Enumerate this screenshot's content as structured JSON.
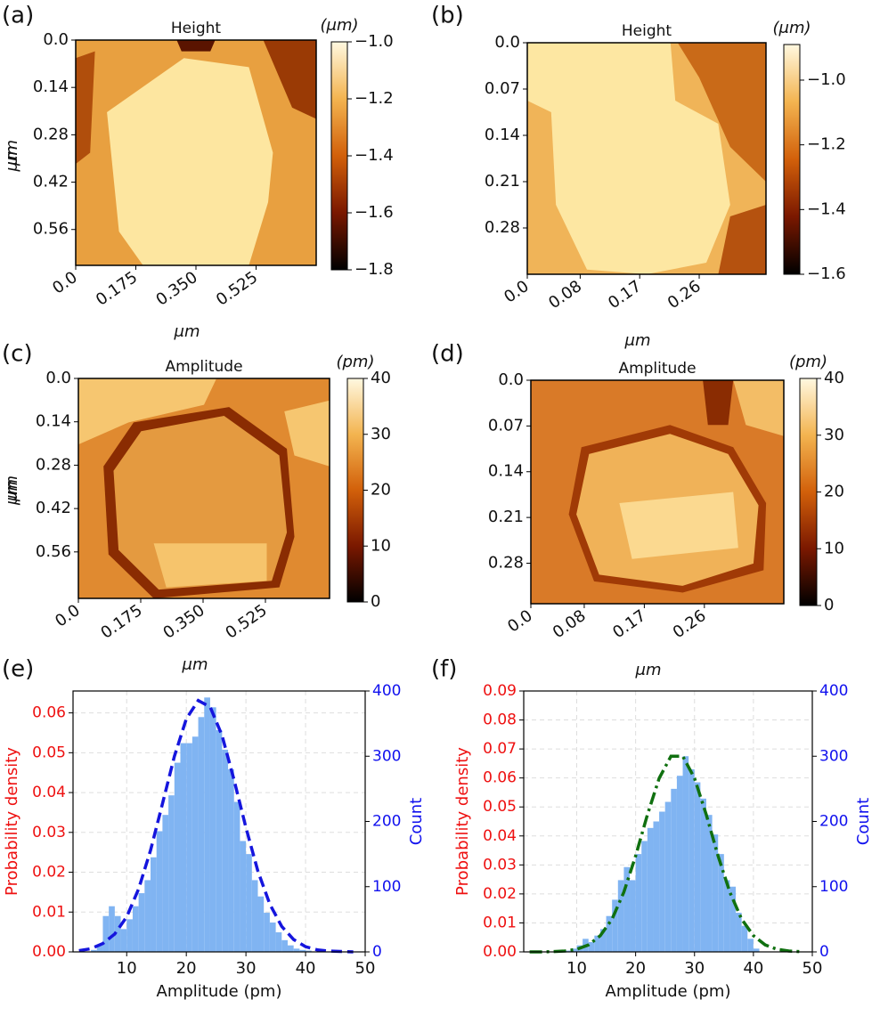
{
  "chart_data": [
    {
      "type": "heatmap",
      "panel_label": "(a)",
      "title": "Height",
      "xlabel": "μm",
      "ylabel": "μm",
      "yinvert": true,
      "xlim": [
        0,
        0.7
      ],
      "ylim": [
        0,
        0.666
      ],
      "xticks": [
        {
          "value": 0,
          "label": "0.0"
        },
        0.175,
        {
          "value": 0.35,
          "label": "0.350"
        },
        0.525
      ],
      "yticks": [
        {
          "value": 0,
          "label": "0.0"
        },
        0.14,
        0.28,
        0.42,
        0.56
      ],
      "colorbar": {
        "label": "(μm)",
        "clim": [
          -1.8,
          -1.0
        ],
        "colormap": [
          "#000000",
          "#7a1800",
          "#d2600a",
          "#f3b450",
          "#fff8e0"
        ],
        "ticks": [
          {
            "value": -1.0,
            "label": "−1.0"
          },
          {
            "value": -1.2,
            "label": "−1.2"
          },
          {
            "value": -1.4,
            "label": "−1.4"
          },
          {
            "value": -1.6,
            "label": "−1.6"
          },
          {
            "value": -1.8,
            "label": "−1.8"
          }
        ]
      }
    },
    {
      "type": "heatmap",
      "panel_label": "(b)",
      "title": "Height",
      "xlabel": "μm",
      "ylabel": "μm",
      "yinvert": true,
      "xlim": [
        0,
        0.361
      ],
      "ylim": [
        0,
        0.35
      ],
      "xticks": [
        {
          "value": 0,
          "label": "0.0"
        },
        0.08,
        0.17,
        0.26
      ],
      "yticks": [
        {
          "value": 0,
          "label": "0.0"
        },
        0.07,
        0.14,
        0.21,
        0.28
      ],
      "colorbar": {
        "label": "(μm)",
        "clim": [
          -1.6,
          -0.89
        ],
        "colormap": [
          "#000000",
          "#7a1800",
          "#d2600a",
          "#f3b450",
          "#fff8e0"
        ],
        "ticks": [
          {
            "value": -1.0,
            "label": "−1.0"
          },
          {
            "value": -1.2,
            "label": "−1.2"
          },
          {
            "value": -1.4,
            "label": "−1.4"
          },
          {
            "value": -1.6,
            "label": "−1.6"
          }
        ]
      }
    },
    {
      "type": "heatmap",
      "panel_label": "(c)",
      "title": "Amplitude",
      "xlabel": "μm",
      "ylabel": "μm",
      "yinvert": true,
      "xlim": [
        0,
        0.705
      ],
      "ylim": [
        0,
        0.71
      ],
      "xticks": [
        {
          "value": 0,
          "label": "0.0"
        },
        0.175,
        {
          "value": 0.35,
          "label": "0.350"
        },
        0.525
      ],
      "yticks": [
        {
          "value": 0,
          "label": "0.0"
        },
        0.14,
        0.28,
        0.42,
        0.56
      ],
      "colorbar": {
        "label": "(pm)",
        "clim": [
          0,
          40
        ],
        "colormap": [
          "#000000",
          "#7a1800",
          "#d2600a",
          "#f3b450",
          "#fff8e0"
        ],
        "ticks": [
          0,
          10,
          20,
          30,
          40
        ]
      }
    },
    {
      "type": "heatmap",
      "panel_label": "(d)",
      "title": "Amplitude",
      "xlabel": "μm",
      "ylabel": "μm",
      "yinvert": true,
      "xlim": [
        0,
        0.379
      ],
      "ylim": [
        0,
        0.342
      ],
      "xticks": [
        {
          "value": 0,
          "label": "0.0"
        },
        0.08,
        0.17,
        0.26
      ],
      "yticks": [
        {
          "value": 0,
          "label": "0.0"
        },
        0.07,
        0.14,
        0.21,
        0.28
      ],
      "colorbar": {
        "label": "(pm)",
        "clim": [
          0,
          40
        ],
        "colormap": [
          "#000000",
          "#7a1800",
          "#d2600a",
          "#f3b450",
          "#fff8e0"
        ],
        "ticks": [
          0,
          10,
          20,
          30,
          40
        ]
      }
    },
    {
      "type": "histogram",
      "panel_label": "(e)",
      "xlabel": "Amplitude (pm)",
      "ylabel": "Probability density",
      "y2label": "Count",
      "ylabel_color": "#ee1111",
      "y2label_color": "#1111ee",
      "grid": true,
      "xlim": [
        1,
        50
      ],
      "xticks": [
        10,
        20,
        30,
        40,
        50
      ],
      "ylim": [
        0,
        0.0655
      ],
      "yticks": [
        {
          "value": 0,
          "label": "0.00"
        },
        0.01,
        0.02,
        0.03,
        0.04,
        0.05,
        0.06
      ],
      "y2lim": [
        0,
        400
      ],
      "y2ticks": [
        0,
        100,
        200,
        300,
        400
      ],
      "series": [
        {
          "type": "histogram",
          "axis": "y2",
          "color": "#80b4f2",
          "bins": [
            4,
            5,
            6,
            7,
            8,
            9,
            10,
            11,
            12,
            13,
            14,
            15,
            16,
            17,
            18,
            19,
            20,
            21,
            22,
            23,
            24,
            25,
            26,
            27,
            28,
            29,
            30,
            31,
            32,
            33,
            34,
            35,
            36,
            37,
            38,
            39,
            40,
            41
          ],
          "values": [
            3,
            10,
            55,
            70,
            55,
            35,
            50,
            70,
            90,
            110,
            145,
            185,
            210,
            240,
            290,
            320,
            320,
            330,
            360,
            390,
            375,
            340,
            310,
            280,
            230,
            170,
            150,
            110,
            85,
            60,
            45,
            30,
            18,
            10,
            5,
            3,
            2
          ]
        },
        {
          "type": "line",
          "color": "#1515dd",
          "linestyle": "dashed",
          "x": [
            2,
            4,
            6,
            8,
            10,
            12,
            14,
            16,
            18,
            20,
            22,
            24,
            26,
            28,
            30,
            32,
            34,
            36,
            38,
            40,
            42,
            44,
            46,
            48
          ],
          "values": [
            0.0003,
            0.0008,
            0.0021,
            0.0045,
            0.0088,
            0.0158,
            0.0255,
            0.0372,
            0.0491,
            0.0585,
            0.0631,
            0.0615,
            0.0543,
            0.0432,
            0.0312,
            0.0203,
            0.012,
            0.0064,
            0.0031,
            0.0013,
            0.0005,
            0.0002,
            0.0001,
            0
          ]
        }
      ]
    },
    {
      "type": "histogram",
      "panel_label": "(f)",
      "xlabel": "Amplitude (pm)",
      "ylabel": "Probability density",
      "y2label": "Count",
      "ylabel_color": "#ee1111",
      "y2label_color": "#1111ee",
      "grid": true,
      "xlim": [
        1,
        50
      ],
      "xticks": [
        10,
        20,
        30,
        40,
        50
      ],
      "ylim": [
        0,
        0.09
      ],
      "yticks": [
        {
          "value": 0,
          "label": "0.00"
        },
        0.01,
        0.02,
        0.03,
        0.04,
        0.05,
        0.06,
        0.07,
        0.08,
        0.09
      ],
      "y2lim": [
        0,
        400
      ],
      "y2ticks": [
        0,
        100,
        200,
        300,
        400
      ],
      "series": [
        {
          "type": "histogram",
          "axis": "y2",
          "color": "#80b4f2",
          "bins": [
            8,
            9,
            10,
            11,
            12,
            13,
            14,
            15,
            16,
            17,
            18,
            19,
            20,
            21,
            22,
            23,
            24,
            25,
            26,
            27,
            28,
            29,
            30,
            31,
            32,
            33,
            34,
            35,
            36,
            37,
            38,
            39,
            40,
            41
          ],
          "values": [
            2,
            5,
            10,
            20,
            15,
            25,
            35,
            55,
            80,
            110,
            130,
            110,
            150,
            170,
            190,
            200,
            215,
            230,
            250,
            270,
            300,
            280,
            260,
            235,
            210,
            180,
            150,
            110,
            100,
            60,
            40,
            20,
            5
          ]
        },
        {
          "type": "line",
          "color": "#107010",
          "linestyle": "dashdot",
          "x": [
            2,
            4,
            6,
            8,
            10,
            12,
            14,
            16,
            18,
            20,
            22,
            24,
            26,
            28,
            30,
            32,
            34,
            36,
            38,
            40,
            42,
            44,
            46,
            48
          ],
          "values": [
            0,
            0,
            0.0001,
            0.0003,
            0.0009,
            0.0024,
            0.0056,
            0.0113,
            0.0206,
            0.0331,
            0.0473,
            0.0599,
            0.0675,
            0.0675,
            0.0599,
            0.0473,
            0.0331,
            0.0206,
            0.0113,
            0.0056,
            0.0024,
            0.0009,
            0.0003,
            0.0001
          ]
        }
      ]
    }
  ]
}
